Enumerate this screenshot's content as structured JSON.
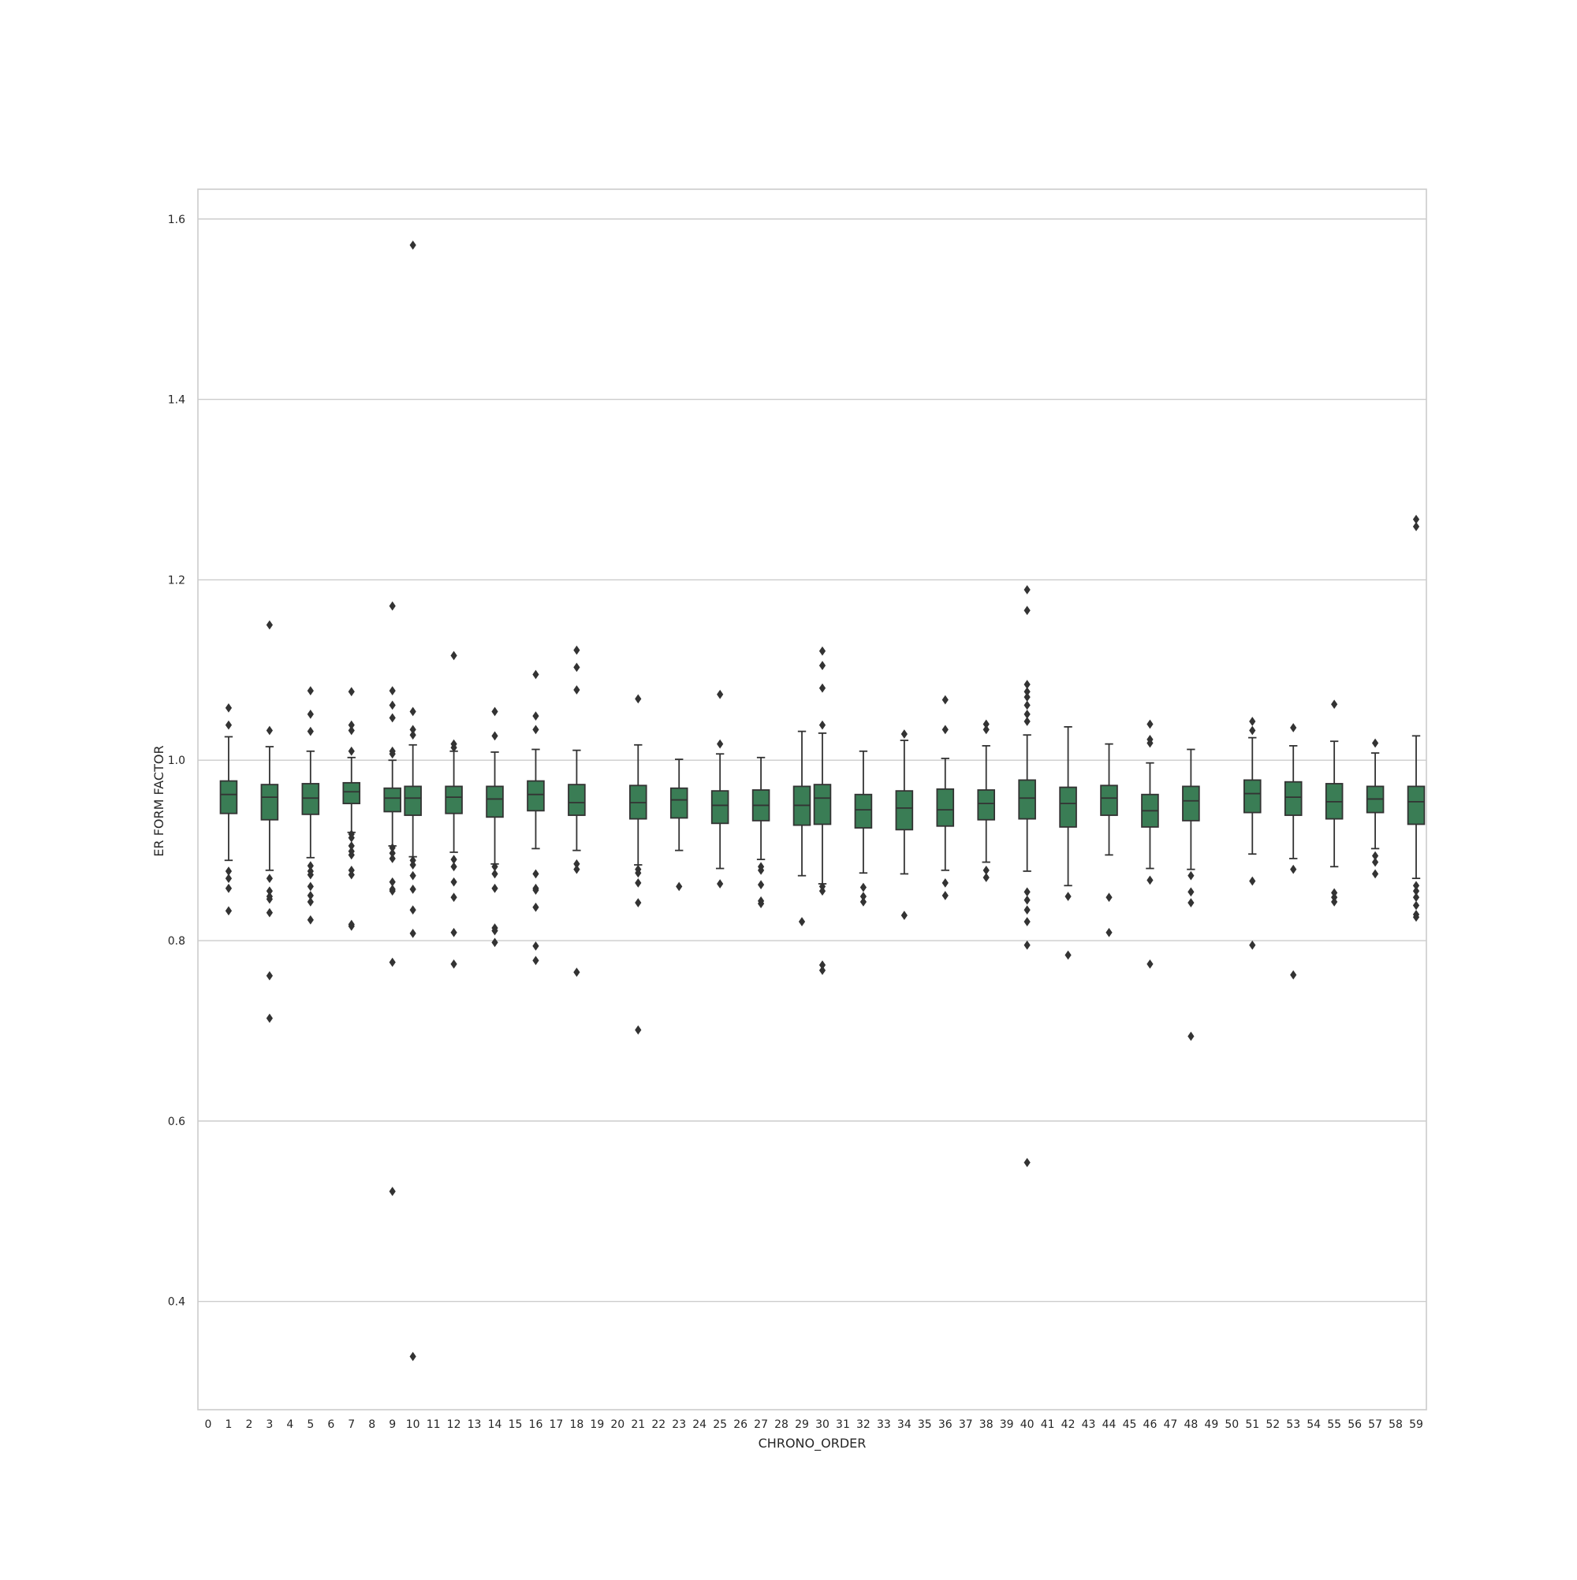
{
  "chart_data": {
    "type": "box",
    "title": "",
    "xlabel": "CHRONO_ORDER",
    "ylabel": "ER FORM FACTOR",
    "categories": [
      "0",
      "1",
      "2",
      "3",
      "4",
      "5",
      "6",
      "7",
      "8",
      "9",
      "10",
      "11",
      "12",
      "13",
      "14",
      "15",
      "16",
      "17",
      "18",
      "19",
      "20",
      "21",
      "22",
      "23",
      "24",
      "25",
      "26",
      "27",
      "28",
      "29",
      "30",
      "31",
      "32",
      "33",
      "34",
      "35",
      "36",
      "37",
      "38",
      "39",
      "40",
      "41",
      "42",
      "43",
      "44",
      "45",
      "46",
      "47",
      "48",
      "49",
      "50",
      "51",
      "52",
      "53",
      "54",
      "55",
      "56",
      "57",
      "58",
      "59"
    ],
    "ylim": [
      0.28,
      1.633
    ],
    "yticks": [
      0.4,
      0.6,
      0.8,
      1.0,
      1.2,
      1.4,
      1.6
    ],
    "ytick_labels": [
      "0.4",
      "0.6",
      "0.8",
      "1.0",
      "1.2",
      "1.4",
      "1.6"
    ],
    "grid": true,
    "box_color": "#3a7d55",
    "line_color": "#333333",
    "boxes": [
      {
        "category": "1",
        "whisker_low": 0.889,
        "q1": 0.941,
        "median": 0.962,
        "q3": 0.977,
        "whisker_high": 1.026,
        "outliers": [
          1.058,
          1.039,
          0.877,
          0.869,
          0.858,
          0.833
        ]
      },
      {
        "category": "3",
        "whisker_low": 0.878,
        "q1": 0.934,
        "median": 0.959,
        "q3": 0.973,
        "whisker_high": 1.015,
        "outliers": [
          1.15,
          1.033,
          0.869,
          0.855,
          0.849,
          0.846,
          0.831,
          0.761,
          0.714
        ]
      },
      {
        "category": "5",
        "whisker_low": 0.892,
        "q1": 0.94,
        "median": 0.958,
        "q3": 0.974,
        "whisker_high": 1.01,
        "outliers": [
          1.077,
          1.051,
          1.032,
          0.883,
          0.877,
          0.873,
          0.86,
          0.85,
          0.843,
          0.823
        ]
      },
      {
        "category": "7",
        "whisker_low": 0.92,
        "q1": 0.952,
        "median": 0.965,
        "q3": 0.975,
        "whisker_high": 1.003,
        "outliers": [
          1.076,
          1.039,
          1.033,
          1.01,
          0.918,
          0.914,
          0.905,
          0.899,
          0.895,
          0.878,
          0.873,
          0.818,
          0.816
        ]
      },
      {
        "category": "9",
        "whisker_low": 0.905,
        "q1": 0.943,
        "median": 0.958,
        "q3": 0.969,
        "whisker_high": 1.0,
        "outliers": [
          1.171,
          1.077,
          1.061,
          1.047,
          1.01,
          1.007,
          0.903,
          0.897,
          0.891,
          0.865,
          0.857,
          0.855,
          0.776,
          0.522
        ]
      },
      {
        "category": "10",
        "whisker_low": 0.893,
        "q1": 0.939,
        "median": 0.958,
        "q3": 0.971,
        "whisker_high": 1.017,
        "outliers": [
          1.571,
          1.054,
          1.034,
          1.028,
          0.889,
          0.884,
          0.872,
          0.857,
          0.834,
          0.808,
          0.339
        ]
      },
      {
        "category": "12",
        "whisker_low": 0.898,
        "q1": 0.941,
        "median": 0.959,
        "q3": 0.971,
        "whisker_high": 1.01,
        "outliers": [
          1.116,
          1.018,
          1.014,
          0.89,
          0.882,
          0.865,
          0.848,
          0.809,
          0.774
        ]
      },
      {
        "category": "14",
        "whisker_low": 0.885,
        "q1": 0.937,
        "median": 0.957,
        "q3": 0.971,
        "whisker_high": 1.009,
        "outliers": [
          1.054,
          1.027,
          0.882,
          0.874,
          0.858,
          0.814,
          0.811,
          0.798
        ]
      },
      {
        "category": "16",
        "whisker_low": 0.902,
        "q1": 0.944,
        "median": 0.962,
        "q3": 0.977,
        "whisker_high": 1.012,
        "outliers": [
          1.095,
          1.049,
          1.034,
          0.874,
          0.858,
          0.856,
          0.837,
          0.794,
          0.778
        ]
      },
      {
        "category": "18",
        "whisker_low": 0.9,
        "q1": 0.939,
        "median": 0.953,
        "q3": 0.973,
        "whisker_high": 1.011,
        "outliers": [
          1.122,
          1.103,
          1.078,
          0.885,
          0.879,
          0.765
        ]
      },
      {
        "category": "21",
        "whisker_low": 0.884,
        "q1": 0.935,
        "median": 0.953,
        "q3": 0.972,
        "whisker_high": 1.017,
        "outliers": [
          1.068,
          0.879,
          0.875,
          0.864,
          0.842,
          0.701
        ]
      },
      {
        "category": "23",
        "whisker_low": 0.9,
        "q1": 0.936,
        "median": 0.956,
        "q3": 0.969,
        "whisker_high": 1.001,
        "outliers": [
          0.86
        ]
      },
      {
        "category": "25",
        "whisker_low": 0.88,
        "q1": 0.93,
        "median": 0.95,
        "q3": 0.966,
        "whisker_high": 1.007,
        "outliers": [
          1.073,
          1.018,
          0.863
        ]
      },
      {
        "category": "27",
        "whisker_low": 0.89,
        "q1": 0.933,
        "median": 0.95,
        "q3": 0.967,
        "whisker_high": 1.003,
        "outliers": [
          0.882,
          0.878,
          0.862,
          0.844,
          0.841
        ]
      },
      {
        "category": "29",
        "whisker_low": 0.872,
        "q1": 0.928,
        "median": 0.95,
        "q3": 0.971,
        "whisker_high": 1.032,
        "outliers": [
          0.821
        ]
      },
      {
        "category": "30",
        "whisker_low": 0.863,
        "q1": 0.929,
        "median": 0.958,
        "q3": 0.973,
        "whisker_high": 1.03,
        "outliers": [
          1.121,
          1.105,
          1.08,
          1.039,
          0.86,
          0.855,
          0.773,
          0.767
        ]
      },
      {
        "category": "32",
        "whisker_low": 0.875,
        "q1": 0.925,
        "median": 0.945,
        "q3": 0.962,
        "whisker_high": 1.01,
        "outliers": [
          0.859,
          0.849,
          0.843
        ]
      },
      {
        "category": "34",
        "whisker_low": 0.874,
        "q1": 0.923,
        "median": 0.947,
        "q3": 0.966,
        "whisker_high": 1.022,
        "outliers": [
          1.029,
          0.828
        ]
      },
      {
        "category": "36",
        "whisker_low": 0.878,
        "q1": 0.927,
        "median": 0.945,
        "q3": 0.968,
        "whisker_high": 1.002,
        "outliers": [
          1.067,
          1.034,
          0.864,
          0.85
        ]
      },
      {
        "category": "38",
        "whisker_low": 0.887,
        "q1": 0.934,
        "median": 0.952,
        "q3": 0.967,
        "whisker_high": 1.016,
        "outliers": [
          1.04,
          1.034,
          0.878,
          0.87
        ]
      },
      {
        "category": "40",
        "whisker_low": 0.877,
        "q1": 0.935,
        "median": 0.958,
        "q3": 0.978,
        "whisker_high": 1.028,
        "outliers": [
          1.189,
          1.166,
          1.084,
          1.076,
          1.07,
          1.061,
          1.051,
          1.043,
          0.854,
          0.845,
          0.834,
          0.821,
          0.795,
          0.554
        ]
      },
      {
        "category": "42",
        "whisker_low": 0.861,
        "q1": 0.926,
        "median": 0.952,
        "q3": 0.97,
        "whisker_high": 1.037,
        "outliers": [
          0.849,
          0.784
        ]
      },
      {
        "category": "44",
        "whisker_low": 0.895,
        "q1": 0.939,
        "median": 0.958,
        "q3": 0.972,
        "whisker_high": 1.018,
        "outliers": [
          0.848,
          0.809
        ]
      },
      {
        "category": "46",
        "whisker_low": 0.88,
        "q1": 0.926,
        "median": 0.944,
        "q3": 0.962,
        "whisker_high": 0.997,
        "outliers": [
          1.04,
          1.023,
          1.019,
          0.867,
          0.774
        ]
      },
      {
        "category": "48",
        "whisker_low": 0.879,
        "q1": 0.933,
        "median": 0.955,
        "q3": 0.971,
        "whisker_high": 1.012,
        "outliers": [
          0.872,
          0.854,
          0.842,
          0.694
        ]
      },
      {
        "category": "51",
        "whisker_low": 0.896,
        "q1": 0.942,
        "median": 0.963,
        "q3": 0.978,
        "whisker_high": 1.025,
        "outliers": [
          1.043,
          1.033,
          0.866,
          0.795
        ]
      },
      {
        "category": "53",
        "whisker_low": 0.891,
        "q1": 0.939,
        "median": 0.959,
        "q3": 0.976,
        "whisker_high": 1.016,
        "outliers": [
          1.036,
          0.879,
          0.762
        ]
      },
      {
        "category": "55",
        "whisker_low": 0.882,
        "q1": 0.935,
        "median": 0.954,
        "q3": 0.974,
        "whisker_high": 1.021,
        "outliers": [
          1.062,
          0.853,
          0.848,
          0.843
        ]
      },
      {
        "category": "57",
        "whisker_low": 0.902,
        "q1": 0.942,
        "median": 0.957,
        "q3": 0.971,
        "whisker_high": 1.008,
        "outliers": [
          1.019,
          0.894,
          0.887,
          0.874
        ]
      },
      {
        "category": "59",
        "whisker_low": 0.869,
        "q1": 0.929,
        "median": 0.954,
        "q3": 0.971,
        "whisker_high": 1.027,
        "outliers": [
          1.267,
          1.259,
          0.861,
          0.855,
          0.848,
          0.839,
          0.829,
          0.826
        ]
      }
    ]
  }
}
